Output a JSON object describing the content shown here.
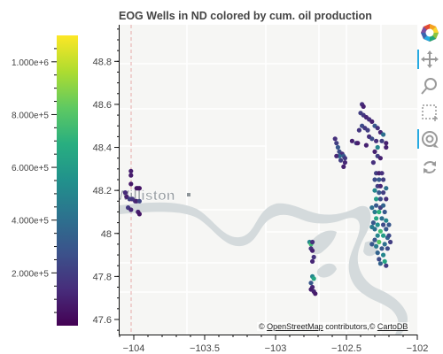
{
  "title": "EOG Wells in ND colored by cum. oil production",
  "attribution": {
    "prefix": "© ",
    "osm": "OpenStreetMap",
    "mid": " contributors,© ",
    "carto": "CartoDB"
  },
  "map_labels": {
    "city": "Williston"
  },
  "colors": {
    "background": "#ffffff",
    "land": "#f6f6f4",
    "water": "#d4dadc",
    "road": "#ffffff",
    "border_dashed": "#e7a9a9",
    "tool_active": "#26aae1"
  },
  "toolbar": {
    "logo": "bokeh-logo-icon",
    "tools": [
      {
        "name": "pan-tool-icon",
        "active": true
      },
      {
        "name": "wheel-zoom-tool-icon",
        "active": false
      },
      {
        "name": "box-zoom-tool-icon",
        "active": false
      },
      {
        "name": "wheel-pan-tool-icon",
        "active": true
      },
      {
        "name": "reset-tool-icon",
        "active": false
      }
    ]
  },
  "chart_data": {
    "type": "scatter",
    "title": "EOG Wells in ND colored by cum. oil production",
    "xlabel": "",
    "ylabel": "",
    "xlim": [
      -104.1,
      -102.0
    ],
    "ylim": [
      47.53,
      48.97
    ],
    "x_ticks": [
      -104,
      -103.5,
      -103,
      -102.5,
      -102
    ],
    "x_tick_labels": [
      "−104",
      "−103.5",
      "−103",
      "−102.5",
      "−102"
    ],
    "y_ticks": [
      47.6,
      47.8,
      48,
      48.2,
      48.4,
      48.6,
      48.8
    ],
    "y_tick_labels": [
      "47.6",
      "47.8",
      "48",
      "48.2",
      "48.4",
      "48.6",
      "48.8"
    ],
    "colorbar": {
      "palette": "Viridis",
      "range": [
        0,
        1100000
      ],
      "ticks": [
        200000,
        400000,
        600000,
        800000,
        1000000
      ],
      "tick_labels": [
        "2.000e+5",
        "4.000e+5",
        "6.000e+5",
        "8.000e+5",
        "1.000e+6"
      ]
    },
    "points": [
      [
        -104.02,
        48.27,
        80000
      ],
      [
        -104.02,
        48.29,
        90000
      ],
      [
        -104.02,
        48.23,
        70000
      ],
      [
        -103.98,
        48.21,
        60000
      ],
      [
        -103.97,
        48.21,
        60000
      ],
      [
        -103.96,
        48.21,
        60000
      ],
      [
        -104.06,
        48.19,
        130000
      ],
      [
        -104.05,
        48.17,
        100000
      ],
      [
        -104.03,
        48.16,
        200000
      ],
      [
        -104.01,
        48.16,
        170000
      ],
      [
        -103.99,
        48.15,
        140000
      ],
      [
        -103.98,
        48.15,
        100000
      ],
      [
        -103.96,
        48.15,
        220000
      ],
      [
        -104.04,
        48.12,
        180000
      ],
      [
        -104.02,
        48.11,
        120000
      ],
      [
        -103.97,
        48.1,
        90000
      ],
      [
        -103.96,
        48.09,
        60000
      ],
      [
        -102.76,
        47.96,
        500000
      ],
      [
        -102.75,
        47.95,
        750000
      ],
      [
        -102.74,
        47.96,
        150000
      ],
      [
        -102.75,
        47.93,
        150000
      ],
      [
        -102.74,
        47.92,
        100000
      ],
      [
        -102.73,
        47.89,
        160000
      ],
      [
        -102.74,
        47.87,
        120000
      ],
      [
        -102.74,
        47.8,
        500000
      ],
      [
        -102.73,
        47.79,
        650000
      ],
      [
        -102.75,
        47.77,
        300000
      ],
      [
        -102.74,
        47.75,
        120000
      ],
      [
        -102.75,
        47.74,
        90000
      ],
      [
        -102.73,
        47.73,
        110000
      ],
      [
        -102.72,
        47.72,
        80000
      ],
      [
        -102.58,
        48.44,
        150000
      ],
      [
        -102.57,
        48.42,
        200000
      ],
      [
        -102.56,
        48.4,
        300000
      ],
      [
        -102.55,
        48.38,
        250000
      ],
      [
        -102.53,
        48.37,
        150000
      ],
      [
        -102.52,
        48.36,
        300000
      ],
      [
        -102.51,
        48.35,
        180000
      ],
      [
        -102.51,
        48.33,
        120000
      ],
      [
        -102.52,
        48.31,
        100000
      ],
      [
        -102.55,
        48.36,
        400000
      ],
      [
        -102.54,
        48.34,
        200000
      ],
      [
        -102.57,
        48.36,
        120000
      ],
      [
        -102.46,
        48.43,
        100000
      ],
      [
        -102.43,
        48.42,
        200000
      ],
      [
        -102.39,
        48.6,
        150000
      ],
      [
        -102.38,
        48.59,
        100000
      ],
      [
        -102.4,
        48.56,
        200000
      ],
      [
        -102.38,
        48.55,
        180000
      ],
      [
        -102.36,
        48.54,
        120000
      ],
      [
        -102.34,
        48.53,
        150000
      ],
      [
        -102.32,
        48.52,
        100000
      ],
      [
        -102.39,
        48.5,
        250000
      ],
      [
        -102.37,
        48.49,
        180000
      ],
      [
        -102.35,
        48.48,
        200000
      ],
      [
        -102.41,
        48.48,
        170000
      ],
      [
        -102.3,
        48.5,
        300000
      ],
      [
        -102.28,
        48.49,
        160000
      ],
      [
        -102.26,
        48.47,
        120000
      ],
      [
        -102.24,
        48.46,
        400000
      ],
      [
        -102.34,
        48.45,
        150000
      ],
      [
        -102.32,
        48.44,
        250000
      ],
      [
        -102.29,
        48.43,
        150000
      ],
      [
        -102.25,
        48.43,
        200000
      ],
      [
        -102.22,
        48.42,
        100000
      ],
      [
        -102.42,
        48.42,
        90000
      ],
      [
        -102.36,
        48.41,
        100000
      ],
      [
        -102.28,
        48.4,
        500000
      ],
      [
        -102.22,
        48.4,
        100000
      ],
      [
        -102.3,
        48.38,
        100000
      ],
      [
        -102.28,
        48.36,
        200000
      ],
      [
        -102.26,
        48.35,
        100000
      ],
      [
        -102.31,
        48.33,
        150000
      ],
      [
        -102.29,
        48.28,
        200000
      ],
      [
        -102.27,
        48.28,
        100000
      ],
      [
        -102.25,
        48.28,
        150000
      ],
      [
        -102.3,
        48.25,
        250000
      ],
      [
        -102.27,
        48.25,
        300000
      ],
      [
        -102.24,
        48.25,
        200000
      ],
      [
        -102.28,
        48.22,
        200000
      ],
      [
        -102.26,
        48.22,
        120000
      ],
      [
        -102.22,
        48.21,
        400000
      ],
      [
        -102.3,
        48.2,
        500000
      ],
      [
        -102.27,
        48.19,
        300000
      ],
      [
        -102.24,
        48.19,
        200000
      ],
      [
        -102.29,
        48.16,
        600000
      ],
      [
        -102.26,
        48.16,
        250000
      ],
      [
        -102.22,
        48.16,
        150000
      ],
      [
        -102.29,
        48.13,
        300000
      ],
      [
        -102.26,
        48.12,
        200000
      ],
      [
        -102.24,
        48.13,
        350000
      ],
      [
        -102.3,
        48.1,
        450000
      ],
      [
        -102.27,
        48.1,
        700000
      ],
      [
        -102.23,
        48.1,
        300000
      ],
      [
        -102.29,
        48.07,
        650000
      ],
      [
        -102.25,
        48.07,
        400000
      ],
      [
        -102.22,
        48.06,
        500000
      ],
      [
        -102.31,
        48.05,
        300000
      ],
      [
        -102.28,
        48.04,
        550000
      ],
      [
        -102.24,
        48.04,
        250000
      ],
      [
        -102.3,
        48.02,
        400000
      ],
      [
        -102.26,
        48.01,
        750000
      ],
      [
        -102.22,
        48.02,
        300000
      ],
      [
        -102.28,
        47.99,
        500000
      ],
      [
        -102.24,
        47.99,
        600000
      ],
      [
        -102.21,
        47.98,
        350000
      ],
      [
        -102.3,
        47.97,
        300000
      ],
      [
        -102.27,
        47.96,
        800000
      ],
      [
        -102.23,
        47.95,
        400000
      ],
      [
        -102.29,
        47.94,
        450000
      ],
      [
        -102.25,
        47.93,
        300000
      ],
      [
        -102.21,
        47.93,
        250000
      ],
      [
        -102.28,
        47.91,
        350000
      ],
      [
        -102.24,
        47.9,
        500000
      ],
      [
        -102.27,
        47.88,
        250000
      ],
      [
        -102.23,
        47.87,
        650000
      ],
      [
        -102.26,
        47.86,
        350000
      ],
      [
        -102.22,
        47.85,
        200000
      ],
      [
        -102.2,
        47.99,
        250000
      ],
      [
        -102.2,
        48.04,
        300000
      ],
      [
        -102.19,
        47.96,
        200000
      ],
      [
        -102.32,
        48.12,
        400000
      ],
      [
        -102.32,
        48.03,
        450000
      ],
      [
        -102.32,
        47.95,
        300000
      ]
    ]
  }
}
